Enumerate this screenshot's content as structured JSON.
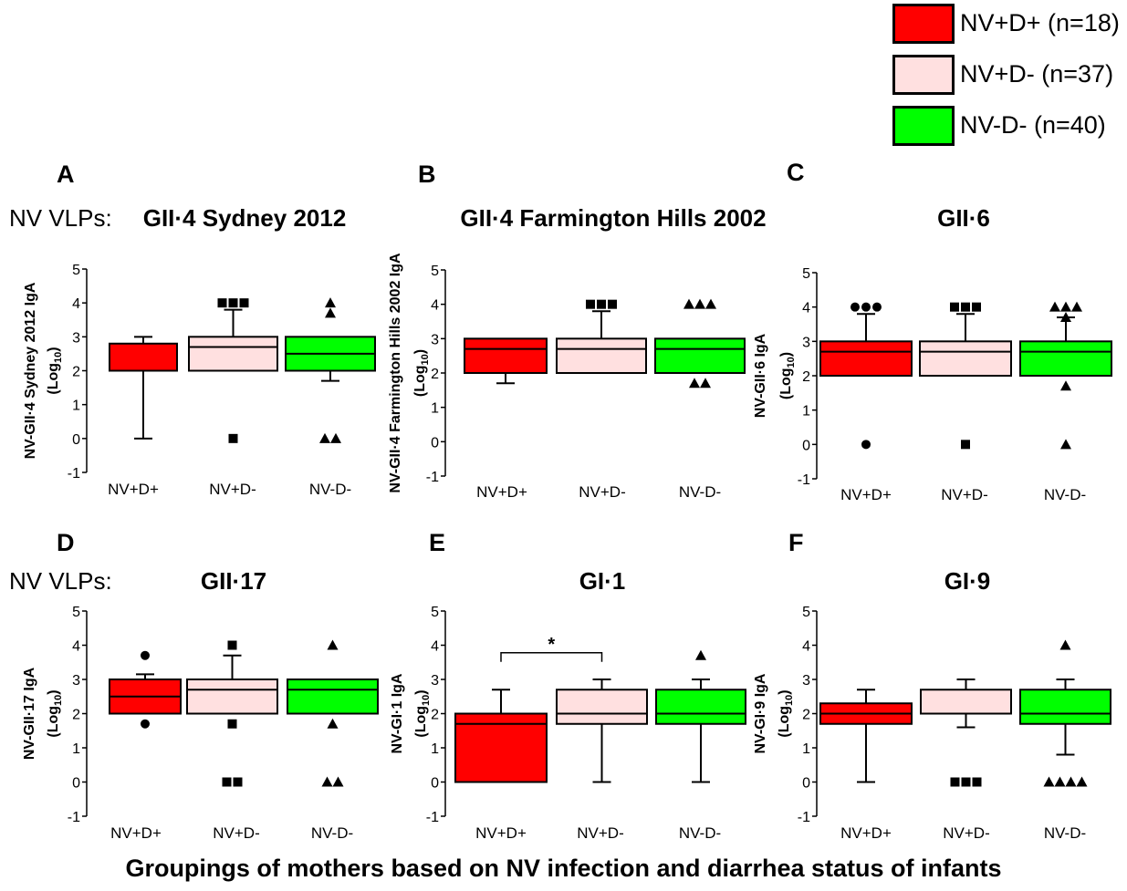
{
  "colors": {
    "nv_d_pos": "#ff0000",
    "nv_d_neg": "#ffe0e0",
    "nv_neg_d_neg": "#00ff00",
    "stroke": "#000000"
  },
  "legend": [
    {
      "label": "NV+D+ (n=18)",
      "color": "#ff0000"
    },
    {
      "label": "NV+D- (n=37)",
      "color": "#ffe0e0"
    },
    {
      "label": "NV-D- (n=40)",
      "color": "#00ff00"
    }
  ],
  "footer_title": "Groupings of mothers based on NV infection and diarrhea status of infants",
  "chart_data": [
    {
      "type": "box",
      "panel_letter": "A",
      "row_label": "NV VLPs:",
      "title": "GII·4 Sydney 2012",
      "ylabel_main": "NV-GII·4 Sydney 2012 IgA",
      "ylabel_unit": "(Log10)",
      "ylim": [
        -1,
        5
      ],
      "yticks": [
        "-1",
        "0",
        "1",
        "2",
        "3",
        "4",
        "5"
      ],
      "categories": [
        "NV+D+",
        "NV+D-",
        "NV-D-"
      ],
      "boxes": [
        {
          "q1": 2.0,
          "median": 2.0,
          "q3": 2.8,
          "whisker_low": 0.0,
          "whisker_high": 3.0,
          "outliers": [],
          "marker": "circle"
        },
        {
          "q1": 2.0,
          "median": 2.7,
          "q3": 3.0,
          "whisker_low": 2.0,
          "whisker_high": 3.8,
          "outliers": [
            4,
            4,
            4,
            0
          ],
          "marker": "square"
        },
        {
          "q1": 2.0,
          "median": 2.5,
          "q3": 3.0,
          "whisker_low": 1.7,
          "whisker_high": 3.0,
          "outliers": [
            4,
            3.7,
            0,
            0
          ],
          "marker": "triangle"
        }
      ]
    },
    {
      "type": "box",
      "panel_letter": "B",
      "row_label": "",
      "title": "GII·4 Farmington Hills 2002",
      "ylabel_main": "NV-GII·4 Farmington Hills 2002 IgA",
      "ylabel_unit": "(Log10)",
      "ylim": [
        -1,
        5
      ],
      "yticks": [
        "-1",
        "0",
        "1",
        "2",
        "3",
        "4",
        "5"
      ],
      "categories": [
        "NV+D+",
        "NV+D-",
        "NV-D-"
      ],
      "boxes": [
        {
          "q1": 2.0,
          "median": 2.7,
          "q3": 3.0,
          "whisker_low": 1.7,
          "whisker_high": 3.0,
          "outliers": [],
          "marker": "circle"
        },
        {
          "q1": 2.0,
          "median": 2.7,
          "q3": 3.0,
          "whisker_low": 2.0,
          "whisker_high": 3.8,
          "outliers": [
            4,
            4,
            4
          ],
          "marker": "square"
        },
        {
          "q1": 2.0,
          "median": 2.7,
          "q3": 3.0,
          "whisker_low": 2.0,
          "whisker_high": 3.0,
          "outliers": [
            4,
            4,
            4,
            1.7,
            1.7
          ],
          "marker": "triangle"
        }
      ]
    },
    {
      "type": "box",
      "panel_letter": "C",
      "row_label": "",
      "title": "GII·6",
      "ylabel_main": "NV-GII·6 IgA",
      "ylabel_unit": "(Log10)",
      "ylim": [
        -1,
        5
      ],
      "yticks": [
        "-1",
        "0",
        "1",
        "2",
        "3",
        "4",
        "5"
      ],
      "categories": [
        "NV+D+",
        "NV+D-",
        "NV-D-"
      ],
      "boxes": [
        {
          "q1": 2.0,
          "median": 2.7,
          "q3": 3.0,
          "whisker_low": 2.0,
          "whisker_high": 3.8,
          "outliers": [
            4,
            4,
            4,
            0
          ],
          "marker": "circle"
        },
        {
          "q1": 2.0,
          "median": 2.7,
          "q3": 3.0,
          "whisker_low": 2.0,
          "whisker_high": 3.8,
          "outliers": [
            4,
            4,
            4,
            0
          ],
          "marker": "square"
        },
        {
          "q1": 2.0,
          "median": 2.7,
          "q3": 3.0,
          "whisker_low": 2.0,
          "whisker_high": 3.7,
          "outliers": [
            4,
            4,
            4,
            3.7,
            1.7,
            0
          ],
          "marker": "triangle"
        }
      ]
    },
    {
      "type": "box",
      "panel_letter": "D",
      "row_label": "NV VLPs:",
      "title": "GII·17",
      "ylabel_main": "NV-GII·17 IgA",
      "ylabel_unit": "(Log10)",
      "ylim": [
        -1,
        5
      ],
      "yticks": [
        "-1",
        "0",
        "1",
        "2",
        "3",
        "4",
        "5"
      ],
      "categories": [
        "NV+D+",
        "NV+D-",
        "NV-D-"
      ],
      "boxes": [
        {
          "q1": 2.0,
          "median": 2.5,
          "q3": 3.0,
          "whisker_low": 2.0,
          "whisker_high": 3.15,
          "outliers": [
            3.7,
            1.7
          ],
          "marker": "circle"
        },
        {
          "q1": 2.0,
          "median": 2.7,
          "q3": 3.0,
          "whisker_low": 2.0,
          "whisker_high": 3.7,
          "outliers": [
            4,
            1.7,
            0,
            0
          ],
          "marker": "square"
        },
        {
          "q1": 2.0,
          "median": 2.7,
          "q3": 3.0,
          "whisker_low": 2.0,
          "whisker_high": 3.0,
          "outliers": [
            4,
            1.7,
            0,
            0
          ],
          "marker": "triangle"
        }
      ]
    },
    {
      "type": "box",
      "panel_letter": "E",
      "row_label": "",
      "title": "GI·1",
      "ylabel_main": "NV-GI·1 IgA",
      "ylabel_unit": "(Log10)",
      "ylim": [
        -1,
        5
      ],
      "yticks": [
        "-1",
        "0",
        "1",
        "2",
        "3",
        "4",
        "5"
      ],
      "categories": [
        "NV+D+",
        "NV+D-",
        "NV-D-"
      ],
      "significance": {
        "from": 0,
        "to": 1,
        "y": 3.7,
        "label": "*"
      },
      "boxes": [
        {
          "q1": 0.0,
          "median": 1.7,
          "q3": 2.0,
          "whisker_low": 0.0,
          "whisker_high": 2.7,
          "outliers": [],
          "marker": "circle"
        },
        {
          "q1": 1.7,
          "median": 2.0,
          "q3": 2.7,
          "whisker_low": 0.0,
          "whisker_high": 3.0,
          "outliers": [],
          "marker": "square"
        },
        {
          "q1": 1.7,
          "median": 2.0,
          "q3": 2.7,
          "whisker_low": 0.0,
          "whisker_high": 3.0,
          "outliers": [
            3.7
          ],
          "marker": "triangle"
        }
      ]
    },
    {
      "type": "box",
      "panel_letter": "F",
      "row_label": "",
      "title": "GI·9",
      "ylabel_main": "NV-GI·9 IgA",
      "ylabel_unit": "(Log10)",
      "ylim": [
        -1,
        5
      ],
      "yticks": [
        "-1",
        "0",
        "1",
        "2",
        "3",
        "4",
        "5"
      ],
      "categories": [
        "NV+D+",
        "NV+D-",
        "NV-D-"
      ],
      "boxes": [
        {
          "q1": 1.7,
          "median": 2.0,
          "q3": 2.3,
          "whisker_low": 0.0,
          "whisker_high": 2.7,
          "outliers": [],
          "marker": "circle"
        },
        {
          "q1": 2.0,
          "median": 2.0,
          "q3": 2.7,
          "whisker_low": 1.6,
          "whisker_high": 3.0,
          "outliers": [
            0,
            0,
            0
          ],
          "marker": "square"
        },
        {
          "q1": 1.7,
          "median": 2.0,
          "q3": 2.7,
          "whisker_low": 0.8,
          "whisker_high": 3.0,
          "outliers": [
            4,
            0,
            0,
            0,
            0
          ],
          "marker": "triangle"
        }
      ]
    }
  ]
}
